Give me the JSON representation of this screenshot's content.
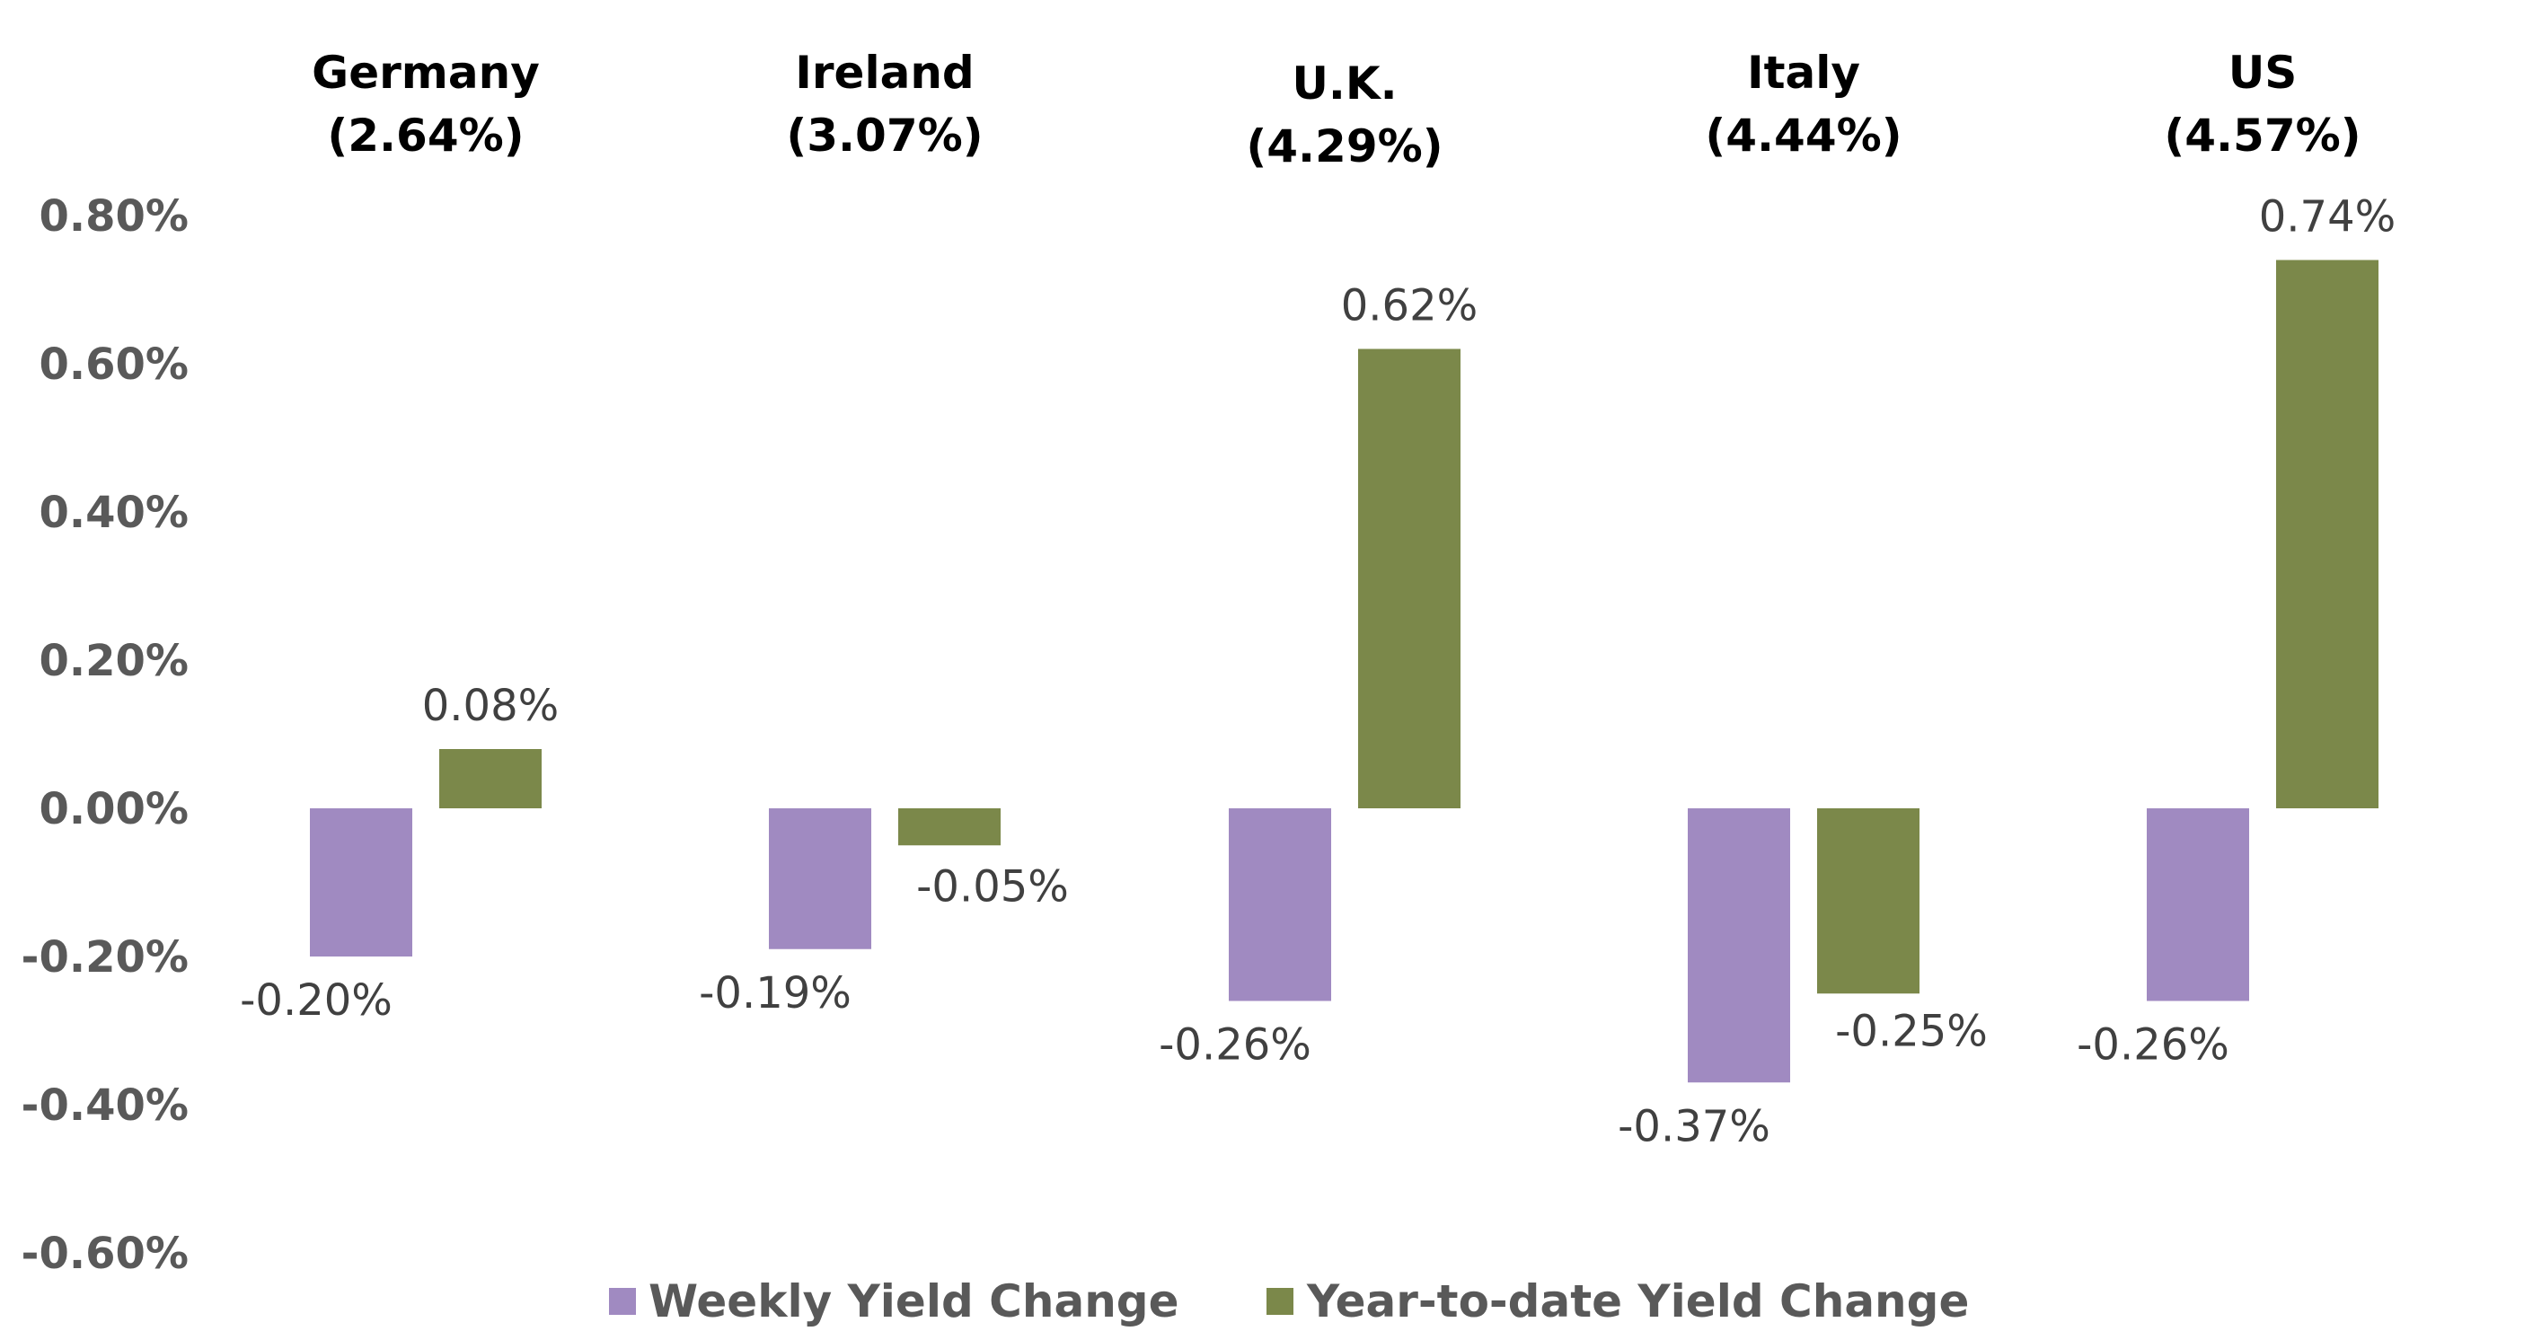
{
  "chart_data": {
    "type": "bar",
    "categories": [
      "Germany",
      "Ireland",
      "U.K.",
      "Italy",
      "US"
    ],
    "category_yields": [
      "(2.64%)",
      "(3.07%)",
      "(4.29%)",
      "(4.44%)",
      "(4.57%)"
    ],
    "series": [
      {
        "name": "Weekly Yield Change",
        "color": "#A08AC1",
        "values": [
          -0.2,
          -0.19,
          -0.26,
          -0.37,
          -0.26
        ],
        "labels": [
          "-0.20%",
          "-0.19%",
          "-0.26%",
          "-0.37%",
          "-0.26%"
        ]
      },
      {
        "name": "Year-to-date Yield Change",
        "color": "#7B884A",
        "values": [
          0.08,
          -0.05,
          0.62,
          -0.25,
          0.74
        ],
        "labels": [
          "0.08%",
          "-0.05%",
          "0.62%",
          "-0.25%",
          "0.74%"
        ]
      }
    ],
    "yticks": [
      "0.80%",
      "0.60%",
      "0.40%",
      "0.20%",
      "0.00%",
      "-0.20%",
      "-0.40%",
      "-0.60%"
    ],
    "ytick_values": [
      0.8,
      0.6,
      0.4,
      0.2,
      0.0,
      -0.2,
      -0.4,
      -0.6
    ],
    "ylim": [
      -0.6,
      0.8
    ],
    "grid": false,
    "legend_position": "bottom"
  }
}
